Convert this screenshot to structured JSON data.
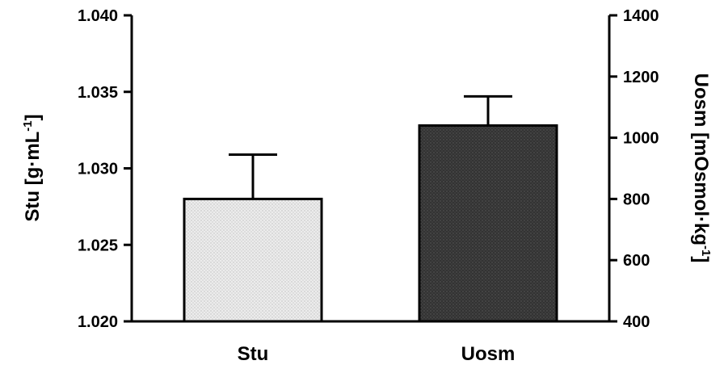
{
  "chart_data": {
    "type": "bar",
    "categories": [
      "Stu",
      "Uosm"
    ],
    "series": [
      {
        "name": "Stu",
        "axis": "left",
        "category": "Stu",
        "value": 1.028,
        "error": 0.0029,
        "fill": "#e6e6e6",
        "pattern": "light-dotted"
      },
      {
        "name": "Uosm",
        "axis": "right",
        "category": "Uosm",
        "value": 1040,
        "error": 95,
        "fill": "#3a3a3a",
        "pattern": "dark-dotted"
      }
    ],
    "left_axis": {
      "label_parts": {
        "main": "Stu [g·mL",
        "sup": "-1",
        "end": "]"
      },
      "ylim": [
        1.02,
        1.04
      ],
      "ticks": [
        "1.020",
        "1.025",
        "1.030",
        "1.035",
        "1.040"
      ]
    },
    "right_axis": {
      "label_parts": {
        "main": "Uosm [mOsmol·kg",
        "sup": "-1",
        "end": "]"
      },
      "ylim": [
        400,
        1400
      ],
      "ticks": [
        "400",
        "600",
        "800",
        "1000",
        "1200",
        "1400"
      ]
    },
    "grid": false,
    "legend": "none"
  }
}
